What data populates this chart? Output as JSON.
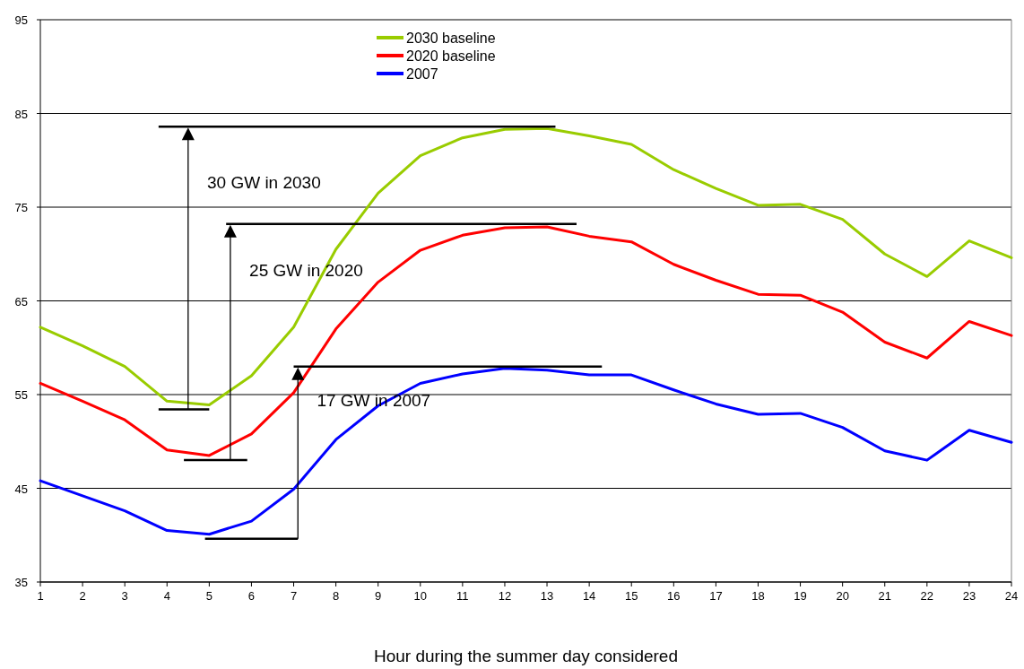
{
  "chart_data": {
    "type": "line",
    "xlabel": "Hour during the summer day considered",
    "x": [
      1,
      2,
      3,
      4,
      5,
      6,
      7,
      8,
      9,
      10,
      11,
      12,
      13,
      14,
      15,
      16,
      17,
      18,
      19,
      20,
      21,
      22,
      23,
      24
    ],
    "xlim": [
      1,
      24
    ],
    "xticks": [
      1,
      2,
      3,
      4,
      5,
      6,
      7,
      8,
      9,
      10,
      11,
      12,
      13,
      14,
      15,
      16,
      17,
      18,
      19,
      20,
      21,
      22,
      23,
      24
    ],
    "ylim": [
      35,
      95
    ],
    "yticks": [
      35,
      45,
      55,
      65,
      75,
      85,
      95
    ],
    "grid": "y",
    "legend": "top",
    "marker": "none",
    "line_style": "solid",
    "series": [
      {
        "name": "2030 baseline",
        "color": "#99cc00",
        "values": [
          62.2,
          60.2,
          58,
          54.3,
          53.9,
          57,
          62.2,
          70.5,
          76.5,
          80.5,
          82.4,
          83.3,
          83.4,
          82.6,
          81.7,
          79,
          77,
          75.2,
          75.3,
          73.7,
          70,
          67.6,
          71.4,
          69.6
        ]
      },
      {
        "name": "2020 baseline",
        "color": "#ff0000",
        "values": [
          56.2,
          54.3,
          52.3,
          49.1,
          48.5,
          50.8,
          55.2,
          62,
          67,
          70.4,
          72,
          72.8,
          72.9,
          71.9,
          71.3,
          68.9,
          67.2,
          65.7,
          65.6,
          63.8,
          60.6,
          58.9,
          62.8,
          61.3
        ]
      },
      {
        "name": "2007",
        "color": "#0000ff",
        "values": [
          45.8,
          44.2,
          42.6,
          40.5,
          40.1,
          41.5,
          44.9,
          50.2,
          53.8,
          56.2,
          57.2,
          57.8,
          57.6,
          57.1,
          57.1,
          55.5,
          54,
          52.9,
          53,
          51.5,
          49,
          48,
          51.2,
          49.9
        ]
      }
    ],
    "annotations": [
      "30 GW in 2030",
      "25 GW in 2020",
      "17 GW in 2007"
    ],
    "ref_lines": [
      {
        "axis": "y",
        "value": 83.6,
        "color": "#000000"
      },
      {
        "axis": "y",
        "value": 73.2,
        "color": "#000000"
      },
      {
        "axis": "y",
        "value": 58.0,
        "color": "#000000"
      }
    ]
  }
}
